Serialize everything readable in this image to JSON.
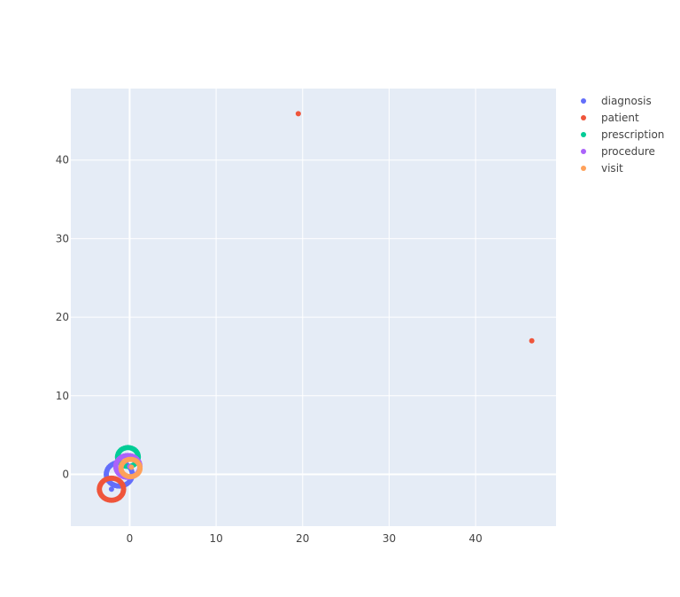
{
  "chart_data": {
    "type": "scatter",
    "title": "",
    "xlabel": "",
    "ylabel": "",
    "xlim": [
      -6.8,
      49.3
    ],
    "ylim": [
      -6.6,
      49.1
    ],
    "x_ticks": [
      0,
      10,
      20,
      30,
      40
    ],
    "y_ticks": [
      0,
      10,
      20,
      30,
      40
    ],
    "grid": true,
    "legend_position": "top-right",
    "series": [
      {
        "name": "diagnosis",
        "color": "#636efa",
        "rings": [
          {
            "cx": -1.2,
            "cy": 0.0,
            "r": 1.5,
            "count": 40
          }
        ],
        "points": [
          [
            -2.1,
            -1.9
          ]
        ]
      },
      {
        "name": "patient",
        "color": "#EF553B",
        "rings": [
          {
            "cx": -2.1,
            "cy": -1.9,
            "r": 1.4,
            "count": 44
          }
        ],
        "points": [
          [
            19.5,
            45.9
          ],
          [
            46.5,
            17.0
          ]
        ]
      },
      {
        "name": "prescription",
        "color": "#00cc96",
        "rings": [
          {
            "cx": -0.2,
            "cy": 2.2,
            "r": 1.2,
            "count": 36
          }
        ],
        "points": []
      },
      {
        "name": "procedure",
        "color": "#ab63fa",
        "rings": [
          {
            "cx": -0.2,
            "cy": 1.0,
            "r": 1.4,
            "count": 36
          }
        ],
        "points": [
          [
            0.0,
            1.0
          ]
        ]
      },
      {
        "name": "visit",
        "color": "#FFA15A",
        "rings": [
          {
            "cx": 0.1,
            "cy": 0.8,
            "r": 1.1,
            "count": 36
          }
        ],
        "points": [
          [
            0.2,
            0.9
          ]
        ]
      }
    ]
  }
}
